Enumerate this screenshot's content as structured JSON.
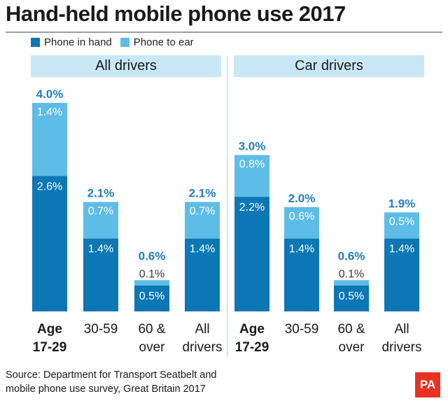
{
  "title": "Hand-held mobile phone use 2017",
  "legend": [
    {
      "label": "Phone in hand",
      "color": "#0b77b4"
    },
    {
      "label": "Phone to ear",
      "color": "#5ebde6"
    }
  ],
  "source_line1": "Source: Department for Transport Seatbelt and",
  "source_line2": "mobile phone use survey, Great Britain 2017",
  "logo_text": "PA",
  "colors": {
    "hand": "#0b77b4",
    "ear": "#5ebde6",
    "total_label": "#1f7fc0"
  },
  "chart_data": [
    {
      "type": "bar",
      "stacked": true,
      "title": "All drivers",
      "categories": [
        [
          "Age",
          "17-29"
        ],
        [
          "30-59"
        ],
        [
          "60 &",
          "over"
        ],
        [
          "All",
          "drivers"
        ]
      ],
      "bold_category": 0,
      "series": [
        {
          "name": "Phone in hand",
          "values": [
            2.6,
            1.4,
            0.5,
            1.4
          ]
        },
        {
          "name": "Phone to ear",
          "values": [
            1.4,
            0.7,
            0.1,
            0.7
          ]
        }
      ],
      "totals": [
        4.0,
        2.1,
        0.6,
        2.1
      ],
      "unit": "%"
    },
    {
      "type": "bar",
      "stacked": true,
      "title": "Car drivers",
      "categories": [
        [
          "Age",
          "17-29"
        ],
        [
          "30-59"
        ],
        [
          "60 &",
          "over"
        ],
        [
          "All",
          "drivers"
        ]
      ],
      "bold_category": 0,
      "series": [
        {
          "name": "Phone in hand",
          "values": [
            2.2,
            1.4,
            0.5,
            1.4
          ]
        },
        {
          "name": "Phone to ear",
          "values": [
            0.8,
            0.6,
            0.1,
            0.5
          ]
        }
      ],
      "totals": [
        3.0,
        2.0,
        0.6,
        1.9
      ],
      "unit": "%"
    }
  ]
}
